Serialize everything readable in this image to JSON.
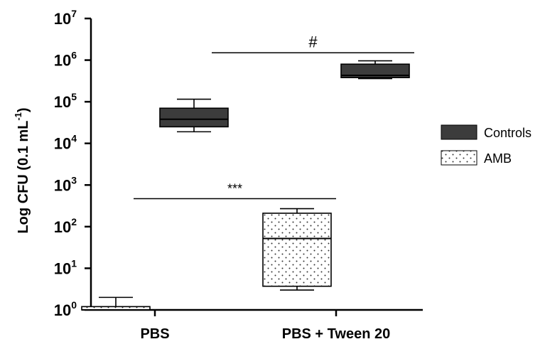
{
  "chart_data": {
    "type": "box",
    "y_scale": "log10",
    "ylim": [
      1,
      10000000
    ],
    "ylabel": {
      "text": "Log CFU (0.1 mL",
      "superscript": "-1",
      "suffix": ")"
    },
    "y_ticks": [
      {
        "base": "10",
        "exp": "0"
      },
      {
        "base": "10",
        "exp": "1"
      },
      {
        "base": "10",
        "exp": "2"
      },
      {
        "base": "10",
        "exp": "3"
      },
      {
        "base": "10",
        "exp": "4"
      },
      {
        "base": "10",
        "exp": "5"
      },
      {
        "base": "10",
        "exp": "6"
      },
      {
        "base": "10",
        "exp": "7"
      }
    ],
    "categories": [
      "PBS",
      "PBS + Tween 20"
    ],
    "legend": {
      "placement": "right"
    },
    "series": [
      {
        "name": "Controls",
        "fill": "#3c3c3c",
        "pattern": "solid",
        "boxes": [
          {
            "category": "PBS",
            "min": 19000,
            "q1": 25000,
            "median": 38000,
            "q3": 70000,
            "max": 115000
          },
          {
            "category": "PBS + Tween 20",
            "min": 360000,
            "q1": 380000,
            "median": 430000,
            "q3": 800000,
            "max": 960000
          }
        ]
      },
      {
        "name": "AMB",
        "fill": "#ffffff",
        "pattern": "dots",
        "boxes": [
          {
            "category": "PBS",
            "min": 1,
            "q1": 1,
            "median": 1,
            "q3": 1.2,
            "max": 2
          },
          {
            "category": "PBS + Tween 20",
            "min": 3,
            "q1": 3.7,
            "median": 52,
            "q3": 210,
            "max": 270
          }
        ]
      }
    ],
    "annotations": [
      {
        "text": "***",
        "y": 470,
        "x_from": "PBS",
        "x_to": "PBS + Tween 20"
      },
      {
        "text": "#",
        "y": 1500000,
        "x_from": "PBS",
        "x_to": "PBS + Tween 20"
      }
    ]
  }
}
